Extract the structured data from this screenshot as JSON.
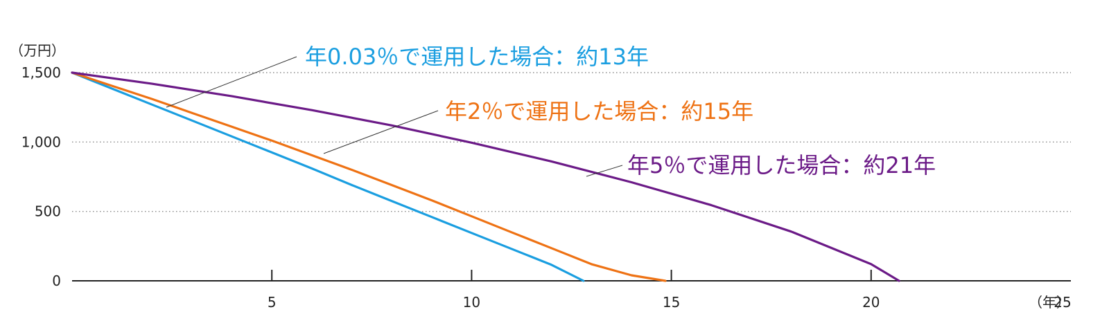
{
  "chart_data": {
    "type": "line",
    "title": "",
    "ylabel": "（万円）",
    "xlabel": "（年）",
    "xlim": [
      0,
      25
    ],
    "ylim": [
      0,
      1500
    ],
    "x_ticks": [
      5,
      10,
      15,
      20,
      25
    ],
    "y_ticks": [
      0,
      500,
      1000,
      1500
    ],
    "y_tick_labels": [
      "0",
      "500",
      "1,000",
      "1,500"
    ],
    "grid": "horizontal-dotted",
    "legend": "inline-annotations",
    "series": [
      {
        "name": "年0.03％で運用した場合：約13年",
        "color": "#1a9ee0",
        "x": [
          0,
          1,
          2,
          3,
          4,
          5,
          6,
          7,
          8,
          9,
          10,
          11,
          12,
          12.8
        ],
        "y": [
          1500,
          1385,
          1270,
          1155,
          1040,
          925,
          810,
          690,
          575,
          460,
          345,
          230,
          115,
          0
        ]
      },
      {
        "name": "年2％で運用した場合：約15年",
        "color": "#ee7214",
        "x": [
          0,
          1,
          2,
          3,
          4,
          5,
          6,
          7,
          8,
          9,
          10,
          11,
          12,
          13,
          14,
          14.85
        ],
        "y": [
          1500,
          1405,
          1310,
          1210,
          1110,
          1010,
          905,
          800,
          690,
          580,
          465,
          350,
          235,
          120,
          40,
          0
        ]
      },
      {
        "name": "年5％で運用した場合：約21年",
        "color": "#6b1a87",
        "x": [
          0,
          2,
          4,
          6,
          8,
          10,
          12,
          14,
          16,
          18,
          20,
          20.7
        ],
        "y": [
          1500,
          1420,
          1330,
          1230,
          1120,
          995,
          860,
          710,
          545,
          355,
          120,
          0
        ]
      }
    ]
  }
}
